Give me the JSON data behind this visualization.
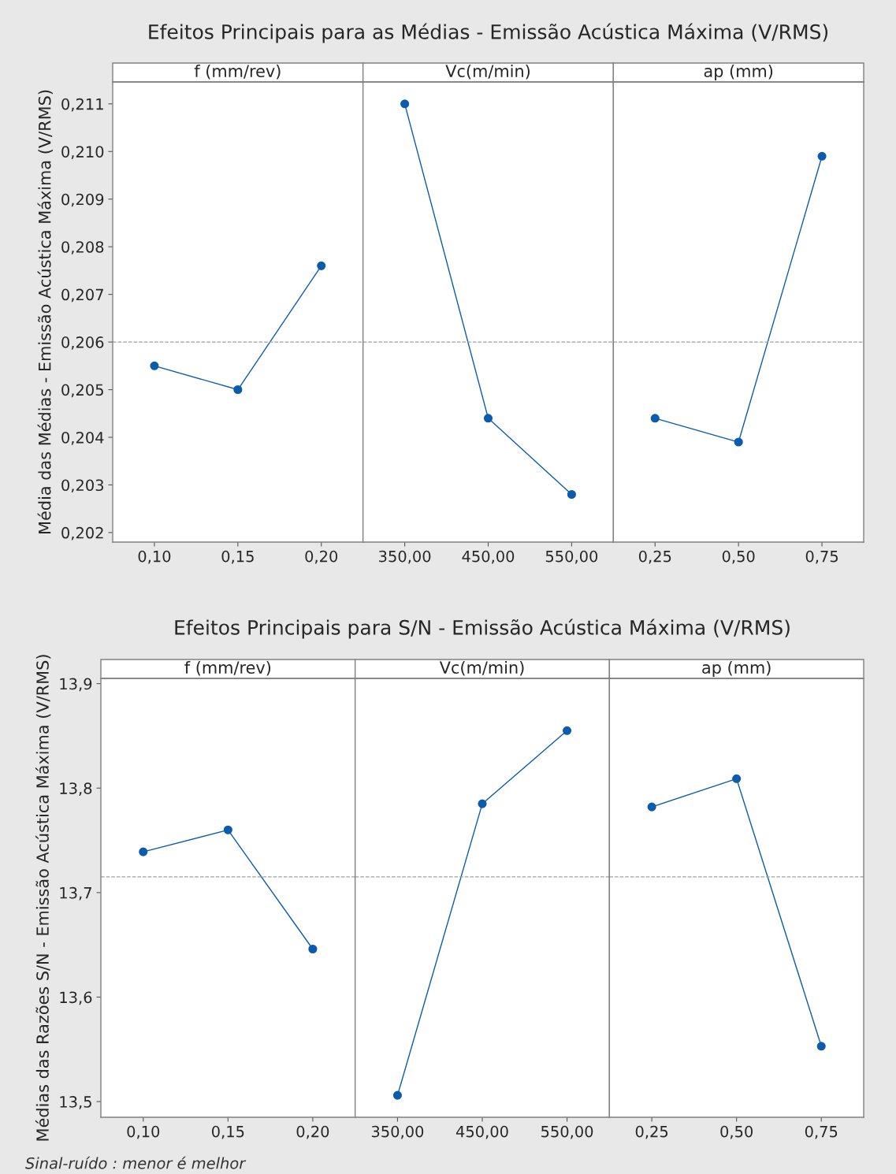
{
  "chart_data": [
    {
      "type": "line",
      "title": "f (mm/rev)",
      "annotations": [
        "Efeitos Principais para as Médias - Emissão Acústica Máxima (V/RMS)"
      ],
      "ylabel": "Média das Médias - Emissão Acústica Máxima (V/RMS)",
      "categories": [
        "0,10",
        "0,15",
        "0,20"
      ],
      "series": [
        {
          "color": "#0b5cad",
          "values": [
            0.2055,
            0.205,
            0.2076
          ]
        }
      ],
      "marker": "circle",
      "line_style": "solid",
      "grid": false,
      "legend": false,
      "ylim": [
        0.2018,
        0.21146
      ],
      "yticks": [
        {
          "value": 0.202,
          "label": "0,202"
        },
        {
          "value": 0.203,
          "label": "0,203"
        },
        {
          "value": 0.204,
          "label": "0,204"
        },
        {
          "value": 0.205,
          "label": "0,205"
        },
        {
          "value": 0.206,
          "label": "0,206"
        },
        {
          "value": 0.207,
          "label": "0,207"
        },
        {
          "value": 0.208,
          "label": "0,208"
        },
        {
          "value": 0.209,
          "label": "0,209"
        },
        {
          "value": 0.21,
          "label": "0,210"
        },
        {
          "value": 0.211,
          "label": "0,211"
        }
      ],
      "ref_lines": [
        {
          "axis": "y",
          "value": 0.206,
          "color": "#a0a0a0",
          "line_style": "dashed"
        }
      ]
    },
    {
      "type": "line",
      "title": "Vc(m/min)",
      "categories": [
        "350,00",
        "450,00",
        "550,00"
      ],
      "series": [
        {
          "color": "#0b5cad",
          "values": [
            0.211,
            0.2044,
            0.2028
          ]
        }
      ],
      "marker": "circle",
      "line_style": "solid",
      "grid": false,
      "legend": false,
      "tick_labels": "x",
      "ylim": [
        0.2018,
        0.21146
      ],
      "yticks": [
        0.202,
        0.203,
        0.204,
        0.205,
        0.206,
        0.207,
        0.208,
        0.209,
        0.21,
        0.211
      ],
      "ref_lines": [
        {
          "axis": "y",
          "value": 0.206,
          "color": "#a0a0a0",
          "line_style": "dashed"
        }
      ]
    },
    {
      "type": "line",
      "title": "ap (mm)",
      "categories": [
        "0,25",
        "0,50",
        "0,75"
      ],
      "series": [
        {
          "color": "#0b5cad",
          "values": [
            0.2044,
            0.2039,
            0.2099
          ]
        }
      ],
      "marker": "circle",
      "line_style": "solid",
      "grid": false,
      "legend": false,
      "tick_labels": "x",
      "ylim": [
        0.2018,
        0.21146
      ],
      "yticks": [
        0.202,
        0.203,
        0.204,
        0.205,
        0.206,
        0.207,
        0.208,
        0.209,
        0.21,
        0.211
      ],
      "ref_lines": [
        {
          "axis": "y",
          "value": 0.206,
          "color": "#a0a0a0",
          "line_style": "dashed"
        }
      ]
    },
    {
      "type": "line",
      "title": "f (mm/rev)",
      "annotations": [
        "Efeitos Principais para S/N - Emissão Acústica Máxima (V/RMS)",
        "Sinal-ruído : menor é melhor"
      ],
      "ylabel": "Médias das Razões S/N - Emissão Acústica Máxima (V/RMS)",
      "categories": [
        "0,10",
        "0,15",
        "0,20"
      ],
      "series": [
        {
          "color": "#0b5cad",
          "values": [
            13.739,
            13.76,
            13.646
          ]
        }
      ],
      "marker": "circle",
      "line_style": "solid",
      "grid": false,
      "legend": false,
      "ylim": [
        13.485,
        13.905
      ],
      "yticks": [
        {
          "value": 13.5,
          "label": "13,5"
        },
        {
          "value": 13.6,
          "label": "13,6"
        },
        {
          "value": 13.7,
          "label": "13,7"
        },
        {
          "value": 13.8,
          "label": "13,8"
        },
        {
          "value": 13.9,
          "label": "13,9"
        }
      ],
      "ref_lines": [
        {
          "axis": "y",
          "value": 13.715,
          "color": "#a0a0a0",
          "line_style": "dashed"
        }
      ]
    },
    {
      "type": "line",
      "title": "Vc(m/min)",
      "categories": [
        "350,00",
        "450,00",
        "550,00"
      ],
      "series": [
        {
          "color": "#0b5cad",
          "values": [
            13.506,
            13.785,
            13.855
          ]
        }
      ],
      "marker": "circle",
      "line_style": "solid",
      "grid": false,
      "legend": false,
      "tick_labels": "x",
      "ylim": [
        13.485,
        13.905
      ],
      "yticks": [
        13.5,
        13.6,
        13.7,
        13.8,
        13.9
      ],
      "ref_lines": [
        {
          "axis": "y",
          "value": 13.715,
          "color": "#a0a0a0",
          "line_style": "dashed"
        }
      ]
    },
    {
      "type": "line",
      "title": "ap (mm)",
      "categories": [
        "0,25",
        "0,50",
        "0,75"
      ],
      "series": [
        {
          "color": "#0b5cad",
          "values": [
            13.782,
            13.809,
            13.553
          ]
        }
      ],
      "marker": "circle",
      "line_style": "solid",
      "grid": false,
      "legend": false,
      "tick_labels": "x",
      "ylim": [
        13.485,
        13.905
      ],
      "yticks": [
        13.5,
        13.6,
        13.7,
        13.8,
        13.9
      ],
      "ref_lines": [
        {
          "axis": "y",
          "value": 13.715,
          "color": "#a0a0a0",
          "line_style": "dashed"
        }
      ]
    }
  ]
}
